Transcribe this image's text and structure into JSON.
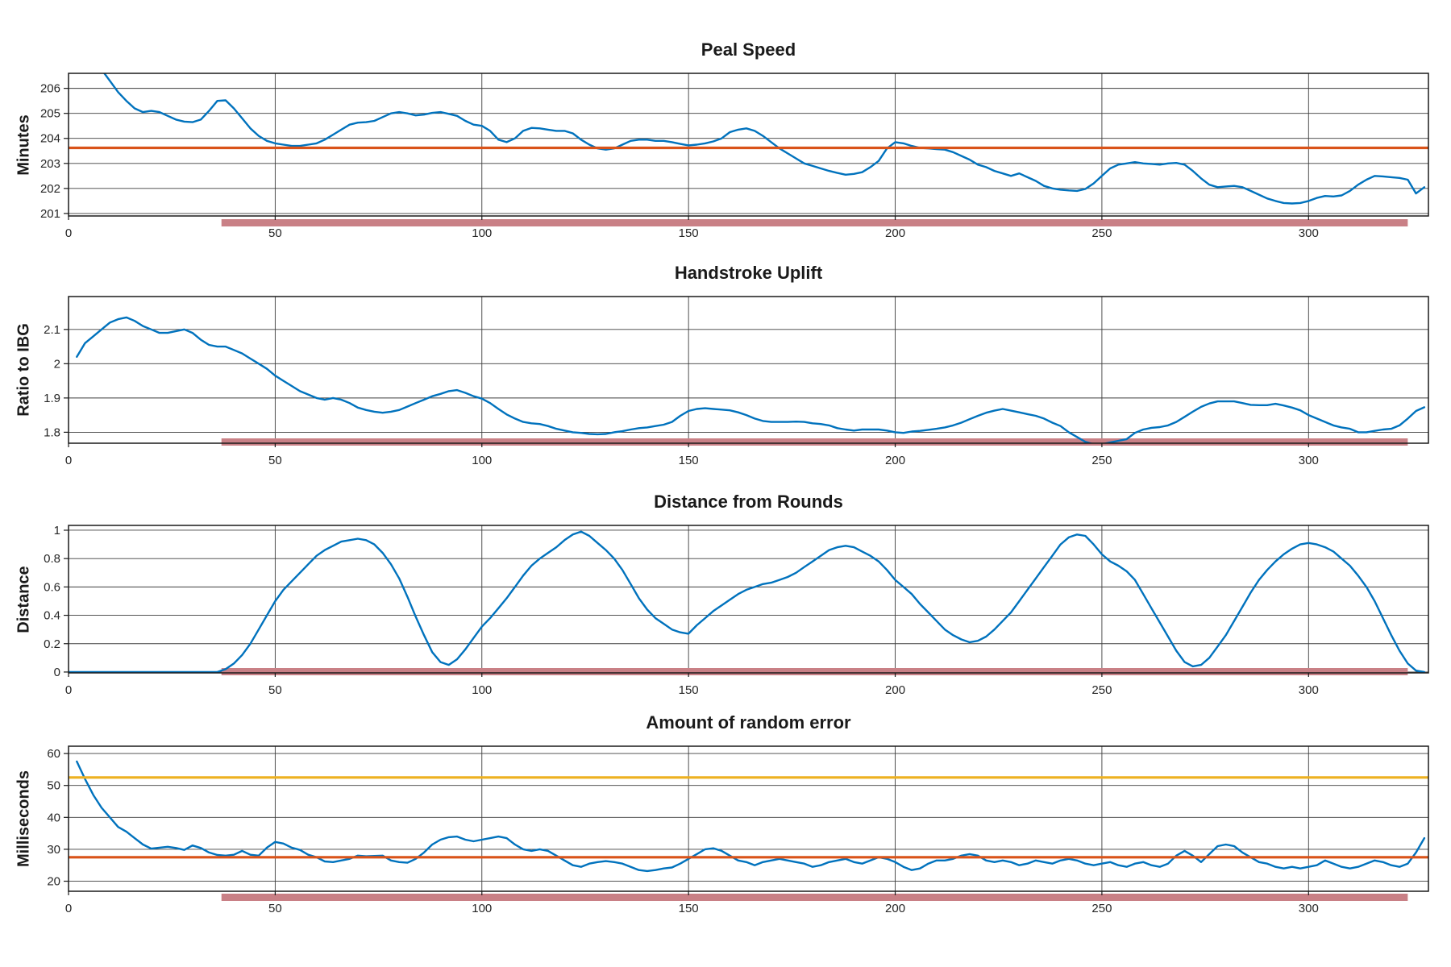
{
  "figure": {
    "background": "#ffffff",
    "grid_color": "#3c3c3c",
    "box_color": "#1a1a1a",
    "tick_text_color": "#262626"
  },
  "chart_data": [
    {
      "type": "line",
      "title": "Peal Speed",
      "ylabel": "Minutes",
      "xlabel": "",
      "xlim": [
        0,
        329
      ],
      "ylim": [
        200.9,
        206.6
      ],
      "xticks": [
        0,
        50,
        100,
        150,
        200,
        250,
        300
      ],
      "yticks": [
        201,
        202,
        203,
        204,
        205,
        206
      ],
      "grid": true,
      "legend": "none",
      "series": [
        {
          "name": "peal-speed",
          "color": "#0072BD",
          "width": 2.4,
          "x": {
            "start": 8,
            "step": 2
          },
          "y": [
            206.75,
            206.3,
            205.85,
            205.5,
            205.2,
            205.05,
            205.1,
            205.05,
            204.9,
            204.75,
            204.67,
            204.65,
            204.75,
            205.1,
            205.5,
            205.52,
            205.2,
            204.8,
            204.4,
            204.1,
            203.9,
            203.8,
            203.75,
            203.7,
            203.7,
            203.75,
            203.8,
            203.95,
            204.15,
            204.35,
            204.55,
            204.63,
            204.65,
            204.7,
            204.85,
            205.0,
            205.05,
            205.0,
            204.92,
            204.95,
            205.02,
            205.05,
            204.98,
            204.9,
            204.7,
            204.55,
            204.5,
            204.3,
            203.95,
            203.85,
            204.0,
            204.3,
            204.42,
            204.4,
            204.35,
            204.3,
            204.3,
            204.2,
            203.95,
            203.75,
            203.6,
            203.55,
            203.6,
            203.75,
            203.9,
            203.95,
            203.95,
            203.9,
            203.9,
            203.85,
            203.78,
            203.72,
            203.75,
            203.8,
            203.88,
            204.0,
            204.25,
            204.35,
            204.4,
            204.3,
            204.1,
            203.85,
            203.6,
            203.4,
            203.2,
            203.0,
            202.9,
            202.8,
            202.7,
            202.62,
            202.55,
            202.58,
            202.65,
            202.85,
            203.1,
            203.6,
            203.85,
            203.8,
            203.7,
            203.62,
            203.6,
            203.57,
            203.55,
            203.45,
            203.3,
            203.15,
            202.95,
            202.85,
            202.7,
            202.6,
            202.5,
            202.6,
            202.45,
            202.3,
            202.1,
            202.0,
            201.95,
            201.92,
            201.9,
            201.98,
            202.2,
            202.5,
            202.8,
            202.95,
            203.0,
            203.05,
            203.0,
            202.98,
            202.95,
            203.0,
            203.02,
            202.95,
            202.7,
            202.4,
            202.15,
            202.05,
            202.08,
            202.1,
            202.05,
            201.9,
            201.75,
            201.6,
            201.5,
            201.42,
            201.4,
            201.42,
            201.5,
            201.62,
            201.7,
            201.68,
            201.72,
            201.9,
            202.15,
            202.35,
            202.5,
            202.48,
            202.45,
            202.42,
            202.35,
            201.8,
            202.05
          ]
        }
      ],
      "ref_lines": [
        {
          "name": "mean-speed-line",
          "y": 203.62,
          "color": "#D95319",
          "width": 3.2
        }
      ],
      "highlight_bar": {
        "x0": 37,
        "x1": 324,
        "color": "#C98086",
        "position": "below-axis"
      }
    },
    {
      "type": "line",
      "title": "Handstroke Uplift",
      "ylabel": "Ratio to IBG",
      "xlabel": "",
      "xlim": [
        0,
        329
      ],
      "ylim": [
        1.768,
        2.196
      ],
      "xticks": [
        0,
        50,
        100,
        150,
        200,
        250,
        300
      ],
      "yticks": [
        1.8,
        1.9,
        2,
        2.1
      ],
      "grid": true,
      "legend": "none",
      "series": [
        {
          "name": "handstroke-uplift",
          "color": "#0072BD",
          "width": 2.4,
          "x": {
            "start": 2,
            "step": 2
          },
          "y": [
            2.02,
            2.06,
            2.08,
            2.1,
            2.12,
            2.13,
            2.135,
            2.125,
            2.11,
            2.1,
            2.09,
            2.09,
            2.095,
            2.1,
            2.09,
            2.07,
            2.055,
            2.05,
            2.05,
            2.04,
            2.03,
            2.015,
            2.0,
            1.985,
            1.965,
            1.95,
            1.935,
            1.92,
            1.91,
            1.9,
            1.895,
            1.9,
            1.895,
            1.885,
            1.872,
            1.865,
            1.86,
            1.857,
            1.86,
            1.865,
            1.875,
            1.885,
            1.895,
            1.905,
            1.912,
            1.92,
            1.923,
            1.915,
            1.905,
            1.898,
            1.885,
            1.868,
            1.852,
            1.84,
            1.83,
            1.826,
            1.824,
            1.818,
            1.81,
            1.805,
            1.8,
            1.798,
            1.795,
            1.794,
            1.795,
            1.8,
            1.803,
            1.808,
            1.812,
            1.814,
            1.818,
            1.822,
            1.83,
            1.848,
            1.862,
            1.868,
            1.87,
            1.868,
            1.866,
            1.864,
            1.858,
            1.85,
            1.84,
            1.833,
            1.83,
            1.83,
            1.83,
            1.831,
            1.83,
            1.826,
            1.824,
            1.82,
            1.812,
            1.808,
            1.805,
            1.808,
            1.808,
            1.808,
            1.805,
            1.8,
            1.798,
            1.802,
            1.804,
            1.807,
            1.81,
            1.814,
            1.82,
            1.828,
            1.838,
            1.848,
            1.857,
            1.863,
            1.868,
            1.863,
            1.858,
            1.853,
            1.848,
            1.84,
            1.828,
            1.818,
            1.8,
            1.786,
            1.772,
            1.765,
            1.765,
            1.77,
            1.775,
            1.78,
            1.798,
            1.808,
            1.813,
            1.815,
            1.82,
            1.83,
            1.845,
            1.86,
            1.874,
            1.884,
            1.89,
            1.89,
            1.89,
            1.885,
            1.88,
            1.879,
            1.879,
            1.883,
            1.878,
            1.872,
            1.864,
            1.85,
            1.84,
            1.83,
            1.82,
            1.814,
            1.81,
            1.8,
            1.8,
            1.804,
            1.808,
            1.81,
            1.82,
            1.84,
            1.862,
            1.873
          ]
        }
      ],
      "ref_lines": [],
      "highlight_bar": {
        "x0": 37,
        "x1": 324,
        "color": "#C98086",
        "position": "on-axis"
      }
    },
    {
      "type": "line",
      "title": "Distance from Rounds",
      "ylabel": "Distance",
      "xlabel": "",
      "xlim": [
        0,
        329
      ],
      "ylim": [
        -0.006,
        1.034
      ],
      "xticks": [
        0,
        50,
        100,
        150,
        200,
        250,
        300
      ],
      "yticks": [
        0,
        0.2,
        0.4,
        0.6,
        0.8,
        1
      ],
      "grid": true,
      "legend": "none",
      "series": [
        {
          "name": "distance-from-rounds",
          "color": "#0072BD",
          "width": 2.4,
          "x": {
            "start": 0,
            "step": 2
          },
          "y": [
            0,
            0,
            0,
            0,
            0,
            0,
            0,
            0,
            0,
            0,
            0,
            0,
            0,
            0,
            0,
            0,
            0,
            0,
            0,
            0.02,
            0.06,
            0.12,
            0.2,
            0.3,
            0.4,
            0.5,
            0.58,
            0.64,
            0.7,
            0.76,
            0.82,
            0.86,
            0.89,
            0.92,
            0.93,
            0.94,
            0.93,
            0.9,
            0.84,
            0.76,
            0.66,
            0.53,
            0.39,
            0.26,
            0.14,
            0.07,
            0.05,
            0.09,
            0.16,
            0.24,
            0.32,
            0.38,
            0.45,
            0.52,
            0.6,
            0.68,
            0.75,
            0.8,
            0.84,
            0.88,
            0.93,
            0.97,
            0.99,
            0.96,
            0.91,
            0.86,
            0.8,
            0.72,
            0.62,
            0.52,
            0.44,
            0.38,
            0.34,
            0.3,
            0.28,
            0.27,
            0.33,
            0.38,
            0.43,
            0.47,
            0.51,
            0.55,
            0.58,
            0.6,
            0.62,
            0.63,
            0.65,
            0.67,
            0.7,
            0.74,
            0.78,
            0.82,
            0.86,
            0.88,
            0.89,
            0.88,
            0.85,
            0.82,
            0.78,
            0.72,
            0.65,
            0.6,
            0.55,
            0.48,
            0.42,
            0.36,
            0.3,
            0.26,
            0.23,
            0.21,
            0.22,
            0.25,
            0.3,
            0.36,
            0.42,
            0.5,
            0.58,
            0.66,
            0.74,
            0.82,
            0.9,
            0.95,
            0.97,
            0.96,
            0.9,
            0.83,
            0.78,
            0.75,
            0.71,
            0.65,
            0.55,
            0.45,
            0.35,
            0.25,
            0.15,
            0.07,
            0.04,
            0.05,
            0.1,
            0.18,
            0.26,
            0.36,
            0.46,
            0.56,
            0.65,
            0.72,
            0.78,
            0.83,
            0.87,
            0.9,
            0.91,
            0.9,
            0.88,
            0.85,
            0.8,
            0.75,
            0.68,
            0.6,
            0.5,
            0.38,
            0.26,
            0.15,
            0.06,
            0.01,
            0
          ]
        }
      ],
      "ref_lines": [],
      "highlight_bar": {
        "x0": 37,
        "x1": 324,
        "color": "#C98086",
        "position": "on-axis"
      }
    },
    {
      "type": "line",
      "title": "Amount of random error",
      "ylabel": "Milliseconds",
      "xlabel": "",
      "xlim": [
        0,
        329
      ],
      "ylim": [
        16.85,
        62.3
      ],
      "xticks": [
        0,
        50,
        100,
        150,
        200,
        250,
        300
      ],
      "yticks": [
        20,
        30,
        40,
        50,
        60
      ],
      "grid": true,
      "legend": "none",
      "series": [
        {
          "name": "random-error",
          "color": "#0072BD",
          "width": 2.4,
          "x": {
            "start": 2,
            "step": 2
          },
          "y": [
            57.5,
            52,
            47,
            43,
            40,
            37,
            35.5,
            33.5,
            31.5,
            30.2,
            30.5,
            30.8,
            30.4,
            29.8,
            31.2,
            30.4,
            29,
            28.2,
            28,
            28.3,
            29.5,
            28.3,
            28,
            30.5,
            32.3,
            31.8,
            30.5,
            29.8,
            28.3,
            27.5,
            26.2,
            26,
            26.5,
            27,
            28,
            27.8,
            27.9,
            28,
            26.5,
            26,
            25.8,
            27,
            29,
            31.5,
            33,
            33.8,
            34,
            33,
            32.5,
            33,
            33.5,
            34,
            33.5,
            31.5,
            30,
            29.5,
            30,
            29.5,
            28,
            26.5,
            25,
            24.5,
            25.5,
            26,
            26.3,
            26,
            25.5,
            24.5,
            23.5,
            23.2,
            23.5,
            24,
            24.3,
            25.5,
            27,
            28.5,
            30,
            30.3,
            29.5,
            28,
            26.5,
            26,
            25,
            26,
            26.5,
            27,
            26.5,
            26,
            25.5,
            24.5,
            25,
            26,
            26.5,
            27,
            26,
            25.5,
            26.5,
            27.5,
            27,
            26,
            24.5,
            23.5,
            24,
            25.5,
            26.5,
            26.5,
            27,
            28,
            28.5,
            28,
            26.5,
            26,
            26.5,
            26,
            25,
            25.5,
            26.5,
            26,
            25.5,
            26.5,
            27,
            26.5,
            25.5,
            25,
            25.5,
            26,
            25,
            24.5,
            25.5,
            26,
            25,
            24.5,
            25.5,
            28,
            29.5,
            28,
            26,
            28.5,
            31,
            31.5,
            31,
            29,
            27.5,
            26,
            25.5,
            24.5,
            24,
            24.5,
            24,
            24.5,
            25,
            26.5,
            25.5,
            24.5,
            24,
            24.5,
            25.5,
            26.5,
            26,
            25,
            24.5,
            25.5,
            29,
            33.5
          ]
        }
      ],
      "ref_lines": [
        {
          "name": "upper-threshold-line",
          "y": 52.5,
          "color": "#EDB120",
          "width": 3.2
        },
        {
          "name": "lower-threshold-line",
          "y": 27.5,
          "color": "#D95319",
          "width": 3.2
        }
      ],
      "highlight_bar": {
        "x0": 37,
        "x1": 324,
        "color": "#C98086",
        "position": "below-axis"
      }
    }
  ]
}
